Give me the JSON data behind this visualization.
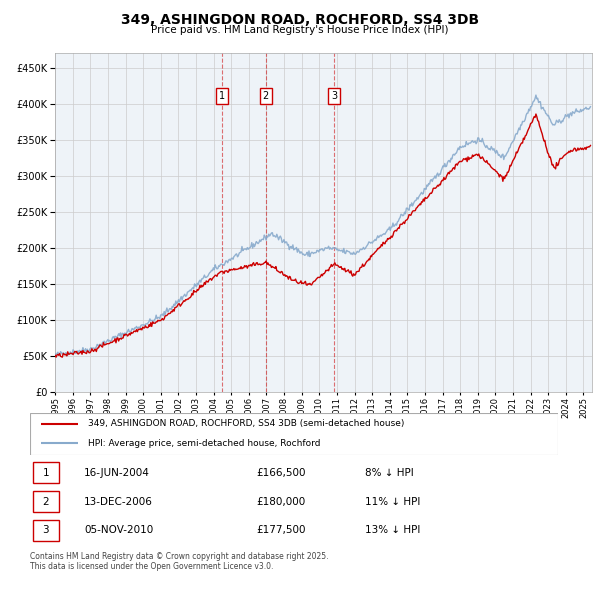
{
  "title": "349, ASHINGDON ROAD, ROCHFORD, SS4 3DB",
  "subtitle": "Price paid vs. HM Land Registry's House Price Index (HPI)",
  "ylabel_values": [
    0,
    50000,
    100000,
    150000,
    200000,
    250000,
    300000,
    350000,
    400000,
    450000
  ],
  "ylim": [
    0,
    470000
  ],
  "xlim_start": 1995.0,
  "xlim_end": 2025.5,
  "sale_points": [
    {
      "x": 2004.45,
      "label": "1"
    },
    {
      "x": 2006.95,
      "label": "2"
    },
    {
      "x": 2010.85,
      "label": "3"
    }
  ],
  "legend_entries": [
    {
      "label": "349, ASHINGDON ROAD, ROCHFORD, SS4 3DB (semi-detached house)",
      "color": "#cc0000",
      "lw": 1.5
    },
    {
      "label": "HPI: Average price, semi-detached house, Rochford",
      "color": "#88aacc",
      "lw": 1.5
    }
  ],
  "table_rows": [
    {
      "num": "1",
      "date": "16-JUN-2004",
      "price": "£166,500",
      "pct": "8% ↓ HPI"
    },
    {
      "num": "2",
      "date": "13-DEC-2006",
      "price": "£180,000",
      "pct": "11% ↓ HPI"
    },
    {
      "num": "3",
      "date": "05-NOV-2010",
      "price": "£177,500",
      "pct": "13% ↓ HPI"
    }
  ],
  "footnote": "Contains HM Land Registry data © Crown copyright and database right 2025.\nThis data is licensed under the Open Government Licence v3.0.",
  "dashed_line_color": "#cc0000",
  "grid_color": "#cccccc",
  "background_color": "#ffffff",
  "marker_y": 410000
}
